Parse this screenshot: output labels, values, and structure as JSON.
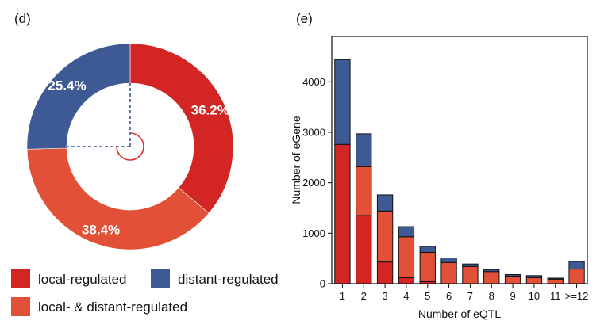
{
  "colors": {
    "local": "#d42525",
    "distant": "#3d5a94",
    "both": "#e25137",
    "edge": "#111111",
    "center_arc": "#e02b2b",
    "dashed": "#3d5a94"
  },
  "panel_d": {
    "label": "(d)"
  },
  "panel_e": {
    "label": "(e)"
  },
  "chart_data": [
    {
      "type": "pie",
      "title": "",
      "donut": true,
      "slices": [
        {
          "name": "local-regulated",
          "value": 36.2,
          "label": "36.2%",
          "color": "#d42525"
        },
        {
          "name": "local- & distant-regulated",
          "value": 38.4,
          "label": "38.4%",
          "color": "#e25137"
        },
        {
          "name": "distant-regulated",
          "value": 25.4,
          "label": "25.4%",
          "color": "#3d5a94"
        }
      ],
      "legend": [
        {
          "label": "local-regulated",
          "color": "#d42525"
        },
        {
          "label": "distant-regulated",
          "color": "#3d5a94"
        },
        {
          "label": "local- & distant-regulated",
          "color": "#e25137"
        }
      ]
    },
    {
      "type": "bar",
      "stacked": true,
      "title": "",
      "xlabel": "Number of eQTL",
      "ylabel": "Number of eGene",
      "categories": [
        "1",
        "2",
        "3",
        "4",
        "5",
        "6",
        "7",
        "8",
        "9",
        "10",
        "11",
        ">=12"
      ],
      "ylim": [
        0,
        4900
      ],
      "yticks": [
        0,
        1000,
        2000,
        3000,
        4000
      ],
      "series": [
        {
          "name": "local-regulated",
          "color": "#d42525",
          "values": [
            2760,
            1350,
            430,
            120,
            40,
            0,
            0,
            0,
            0,
            0,
            0,
            0
          ]
        },
        {
          "name": "local- & distant-regulated",
          "color": "#e25137",
          "values": [
            0,
            970,
            1010,
            810,
            580,
            420,
            340,
            240,
            150,
            120,
            90,
            290
          ]
        },
        {
          "name": "distant-regulated",
          "color": "#3d5a94",
          "values": [
            1680,
            650,
            320,
            200,
            120,
            90,
            50,
            40,
            30,
            40,
            20,
            150
          ]
        }
      ]
    }
  ]
}
